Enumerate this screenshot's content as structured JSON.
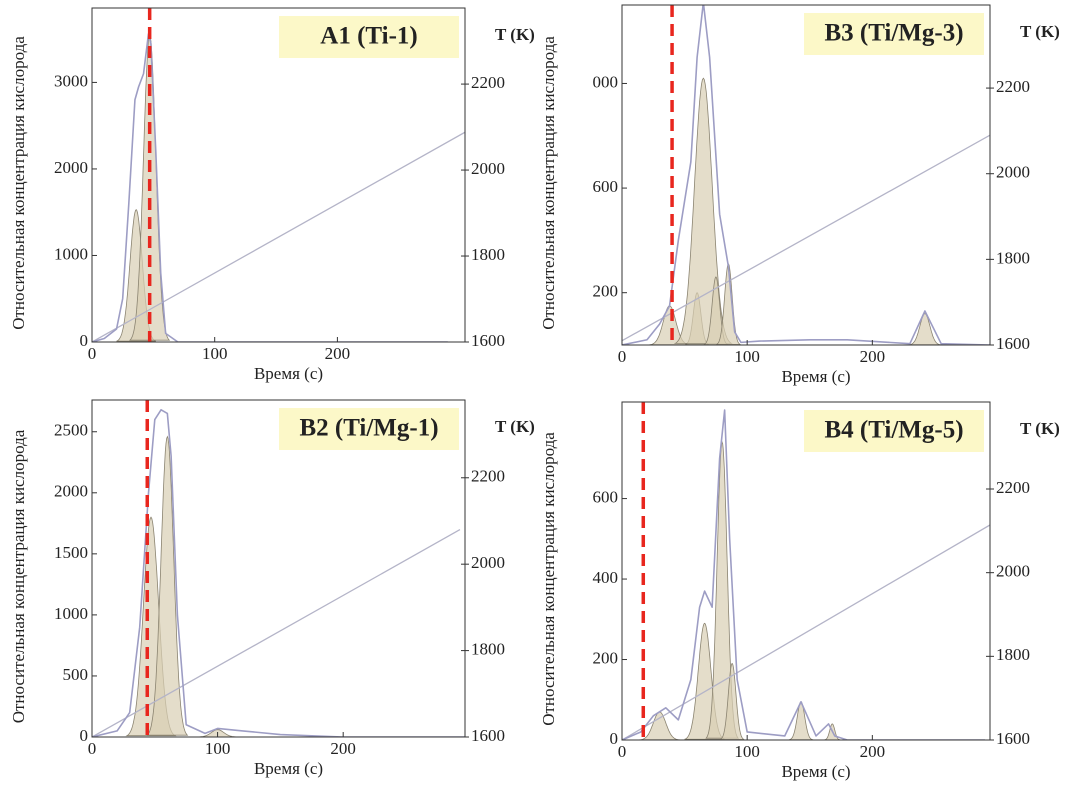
{
  "chart_data": [
    {
      "type": "line",
      "title": "A1 (Ti-1)",
      "ylabel": "Относительная концентрация кислорода",
      "xlabel": "Время (с)",
      "y2label": "T (K)",
      "xlim": [
        0,
        304
      ],
      "xticks": [
        0,
        100,
        200
      ],
      "ylim": [
        0,
        3860
      ],
      "yticks": [
        0,
        1000,
        2000,
        3000
      ],
      "y2lim": [
        1600,
        2377
      ],
      "y2ticks": [
        1600,
        1800,
        2000,
        2200
      ],
      "marker_x": 47,
      "marker_color": "#e8261e",
      "envelope": {
        "color": "#9d9dc4",
        "x": [
          0,
          10,
          20,
          25,
          30,
          35,
          38,
          42,
          46,
          48,
          52,
          56,
          60,
          70,
          100,
          200,
          290
        ],
        "values": [
          0,
          40,
          150,
          500,
          1600,
          2800,
          2950,
          3100,
          3560,
          3450,
          2200,
          800,
          100,
          0,
          0,
          0,
          0
        ]
      },
      "temperature": {
        "color": "#b4b4c8",
        "axis": "y2",
        "x": [
          0,
          304
        ],
        "values": [
          1600,
          2088
        ]
      },
      "components_color": "#d9cfb4",
      "components": [
        {
          "center": 36,
          "height": 1530,
          "width": 5
        },
        {
          "center": 47,
          "height": 3550,
          "width": 5
        }
      ]
    },
    {
      "type": "line",
      "title": "B3 (Ti/Mg-3)",
      "ylabel": "Относительная концентрация кислорода",
      "xlabel": "Время (с)",
      "y2label": "T (K)",
      "xlim": [
        0,
        294
      ],
      "xticks": [
        0,
        100,
        200
      ],
      "ylim": [
        0,
        1300
      ],
      "yticks": [
        200,
        600,
        {
          "value": 1000,
          "label": "000"
        }
      ],
      "y2lim": [
        1600,
        2394
      ],
      "y2ticks": [
        1600,
        1800,
        2000,
        2200
      ],
      "marker_x": 40,
      "marker_color": "#e8261e",
      "envelope": {
        "color": "#9d9dc4",
        "x": [
          0,
          20,
          30,
          38,
          45,
          55,
          60,
          65,
          70,
          78,
          85,
          90,
          95,
          110,
          150,
          180,
          230,
          242,
          255,
          294
        ],
        "values": [
          0,
          20,
          80,
          150,
          400,
          700,
          1100,
          1310,
          1100,
          500,
          300,
          50,
          10,
          15,
          20,
          20,
          5,
          130,
          5,
          0
        ]
      },
      "temperature": {
        "color": "#b4b4c8",
        "axis": "y2",
        "x": [
          0,
          294
        ],
        "values": [
          1610,
          2090
        ]
      },
      "components_color": "#d9cfb4",
      "components": [
        {
          "center": 38,
          "height": 150,
          "width": 5
        },
        {
          "center": 60,
          "height": 200,
          "width": 3
        },
        {
          "center": 65,
          "height": 1020,
          "width": 7
        },
        {
          "center": 75,
          "height": 260,
          "width": 3
        },
        {
          "center": 85,
          "height": 310,
          "width": 3
        },
        {
          "center": 242,
          "height": 120,
          "width": 4
        }
      ]
    },
    {
      "type": "line",
      "title": "B2 (Ti/Mg-1)",
      "ylabel": "Относительная концентрация кислорода",
      "xlabel": "Время (с)",
      "y2label": "T (K)",
      "xlim": [
        0,
        297
      ],
      "xticks": [
        0,
        100,
        200
      ],
      "ylim": [
        0,
        2760
      ],
      "yticks": [
        0,
        500,
        1000,
        1500,
        2000,
        2500
      ],
      "y2lim": [
        1600,
        2380
      ],
      "y2ticks": [
        1600,
        1800,
        2000,
        2200
      ],
      "marker_x": 44,
      "marker_color": "#e8261e",
      "envelope": {
        "color": "#9d9dc4",
        "x": [
          0,
          20,
          30,
          38,
          45,
          50,
          55,
          60,
          63,
          68,
          75,
          90,
          100,
          120,
          150,
          200,
          297
        ],
        "values": [
          0,
          50,
          200,
          900,
          2000,
          2600,
          2680,
          2650,
          2300,
          1000,
          100,
          30,
          70,
          50,
          20,
          0,
          0
        ]
      },
      "temperature": {
        "color": "#b4b4c8",
        "axis": "y2",
        "x": [
          0,
          293
        ],
        "values": [
          1600,
          2080
        ]
      },
      "components_color": "#d9cfb4",
      "components": [
        {
          "center": 47,
          "height": 1800,
          "width": 6
        },
        {
          "center": 60,
          "height": 2460,
          "width": 5
        },
        {
          "center": 100,
          "height": 60,
          "width": 5
        }
      ]
    },
    {
      "type": "line",
      "title": "B4 (Ti/Mg-5)",
      "ylabel": "Относительная концентрация кислорода",
      "xlabel": "Время (с)",
      "y2label": "T (K)",
      "xlim": [
        0,
        294
      ],
      "xticks": [
        0,
        100,
        200
      ],
      "ylim": [
        0,
        840
      ],
      "yticks": [
        0,
        200,
        400,
        600
      ],
      "y2lim": [
        1600,
        2408
      ],
      "y2ticks": [
        1600,
        1800,
        2000,
        2200
      ],
      "marker_x": 17,
      "marker_color": "#e8261e",
      "envelope": {
        "color": "#9d9dc4",
        "x": [
          0,
          15,
          25,
          35,
          45,
          55,
          62,
          66,
          72,
          78,
          82,
          86,
          92,
          100,
          130,
          143,
          155,
          165,
          170,
          180,
          290
        ],
        "values": [
          0,
          20,
          60,
          80,
          50,
          150,
          330,
          370,
          330,
          700,
          820,
          500,
          150,
          20,
          10,
          95,
          10,
          40,
          10,
          0,
          0
        ]
      },
      "temperature": {
        "color": "#b4b4c8",
        "axis": "y2",
        "x": [
          0,
          294
        ],
        "values": [
          1600,
          2114
        ]
      },
      "components_color": "#d9cfb4",
      "components": [
        {
          "center": 30,
          "height": 70,
          "width": 5
        },
        {
          "center": 66,
          "height": 290,
          "width": 5
        },
        {
          "center": 80,
          "height": 740,
          "width": 4
        },
        {
          "center": 88,
          "height": 190,
          "width": 3
        },
        {
          "center": 143,
          "height": 95,
          "width": 3
        },
        {
          "center": 168,
          "height": 40,
          "width": 2
        }
      ]
    }
  ]
}
